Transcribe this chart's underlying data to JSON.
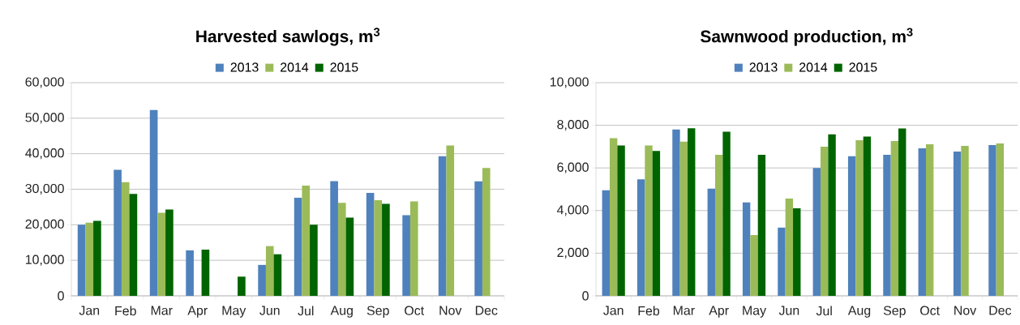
{
  "chart_data": [
    {
      "type": "bar",
      "title": "Harvested sawlogs, m$^{3}$",
      "categories": [
        "Jan",
        "Feb",
        "Mar",
        "Apr",
        "May",
        "Jun",
        "Jul",
        "Aug",
        "Sep",
        "Oct",
        "Nov",
        "Dec"
      ],
      "series": [
        {
          "name": "2013",
          "color": "#4f81bd",
          "values": [
            20000,
            35500,
            52300,
            12800,
            null,
            8700,
            27600,
            32300,
            29000,
            22700,
            39300,
            32200
          ]
        },
        {
          "name": "2014",
          "color": "#9bbb59",
          "values": [
            20600,
            32000,
            23400,
            null,
            null,
            14000,
            31000,
            26200,
            26900,
            26600,
            42300,
            36000
          ]
        },
        {
          "name": "2015",
          "color": "#006400",
          "values": [
            21100,
            28700,
            24300,
            13000,
            5400,
            11700,
            20000,
            22000,
            25900,
            null,
            null,
            null
          ]
        }
      ],
      "ylim": [
        0,
        60000
      ],
      "yticks": [
        {
          "value": 0,
          "label": "0"
        },
        {
          "value": 10000,
          "label": "10,000"
        },
        {
          "value": 20000,
          "label": "20,000"
        },
        {
          "value": 30000,
          "label": "30,000"
        },
        {
          "value": 40000,
          "label": "40,000"
        },
        {
          "value": 50000,
          "label": "50,000"
        },
        {
          "value": 60000,
          "label": "60,000"
        }
      ],
      "grid": "y",
      "legend": "top"
    },
    {
      "type": "bar",
      "title": "Sawnwood production, m$^{3}$",
      "categories": [
        "Jan",
        "Feb",
        "Mar",
        "Apr",
        "May",
        "Jun",
        "Jul",
        "Aug",
        "Sep",
        "Oct",
        "Nov",
        "Dec"
      ],
      "series": [
        {
          "name": "2013",
          "color": "#4f81bd",
          "values": [
            4950,
            5470,
            7800,
            5030,
            4380,
            3200,
            6000,
            6550,
            6620,
            6920,
            6770,
            7070
          ]
        },
        {
          "name": "2014",
          "color": "#9bbb59",
          "values": [
            7400,
            7050,
            7230,
            6620,
            2850,
            4560,
            7000,
            7300,
            7260,
            7110,
            7030,
            7150
          ]
        },
        {
          "name": "2015",
          "color": "#006400",
          "values": [
            7050,
            6800,
            7860,
            7700,
            6620,
            4110,
            7580,
            7470,
            7850,
            null,
            null,
            null
          ]
        }
      ],
      "ylim": [
        0,
        10000
      ],
      "yticks": [
        {
          "value": 0,
          "label": "0"
        },
        {
          "value": 2000,
          "label": "2,000"
        },
        {
          "value": 4000,
          "label": "4,000"
        },
        {
          "value": 6000,
          "label": "6,000"
        },
        {
          "value": 8000,
          "label": "8,000"
        },
        {
          "value": 10000,
          "label": "10,000"
        }
      ],
      "grid": "y",
      "legend": "top"
    }
  ]
}
